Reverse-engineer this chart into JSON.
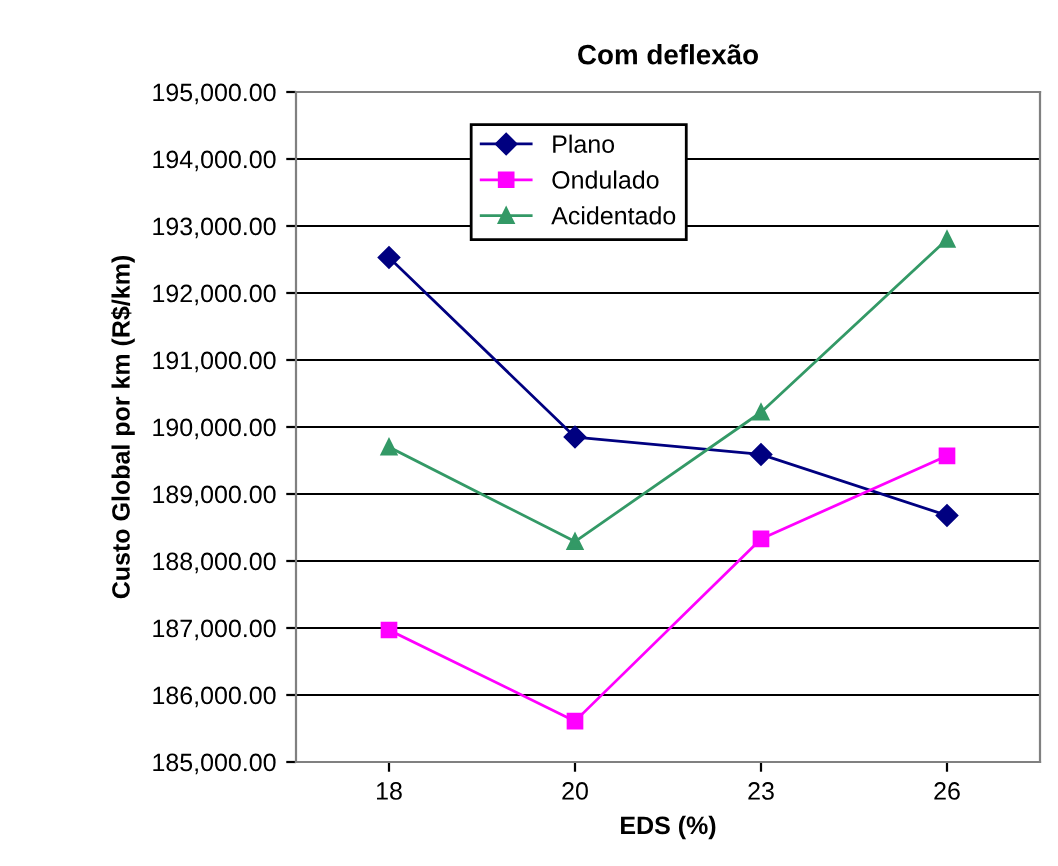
{
  "chart_data": {
    "type": "line",
    "title": "Com deflexão",
    "xlabel": "EDS (%)",
    "ylabel": "Custo Global por km (R$/km)",
    "categories": [
      "18",
      "20",
      "23",
      "26"
    ],
    "series": [
      {
        "name": "Plano",
        "color": "#000080",
        "marker": "diamond",
        "values": [
          192530,
          189850,
          189590,
          188680
        ]
      },
      {
        "name": "Ondulado",
        "color": "#ff00ff",
        "marker": "square",
        "values": [
          186970,
          185610,
          188330,
          189570
        ]
      },
      {
        "name": "Acidentado",
        "color": "#339966",
        "marker": "triangle",
        "values": [
          189700,
          188290,
          190220,
          192800
        ]
      }
    ],
    "ylim": [
      185000,
      195000
    ],
    "yticks": [
      {
        "value": 185000,
        "label": "185,000.00"
      },
      {
        "value": 186000,
        "label": "186,000.00"
      },
      {
        "value": 187000,
        "label": "187,000.00"
      },
      {
        "value": 188000,
        "label": "188,000.00"
      },
      {
        "value": 189000,
        "label": "189,000.00"
      },
      {
        "value": 190000,
        "label": "190,000.00"
      },
      {
        "value": 191000,
        "label": "191,000.00"
      },
      {
        "value": 192000,
        "label": "192,000.00"
      },
      {
        "value": 193000,
        "label": "193,000.00"
      },
      {
        "value": 194000,
        "label": "194,000.00"
      },
      {
        "value": 195000,
        "label": "195,000.00"
      }
    ],
    "grid": "y",
    "legend": "top"
  }
}
